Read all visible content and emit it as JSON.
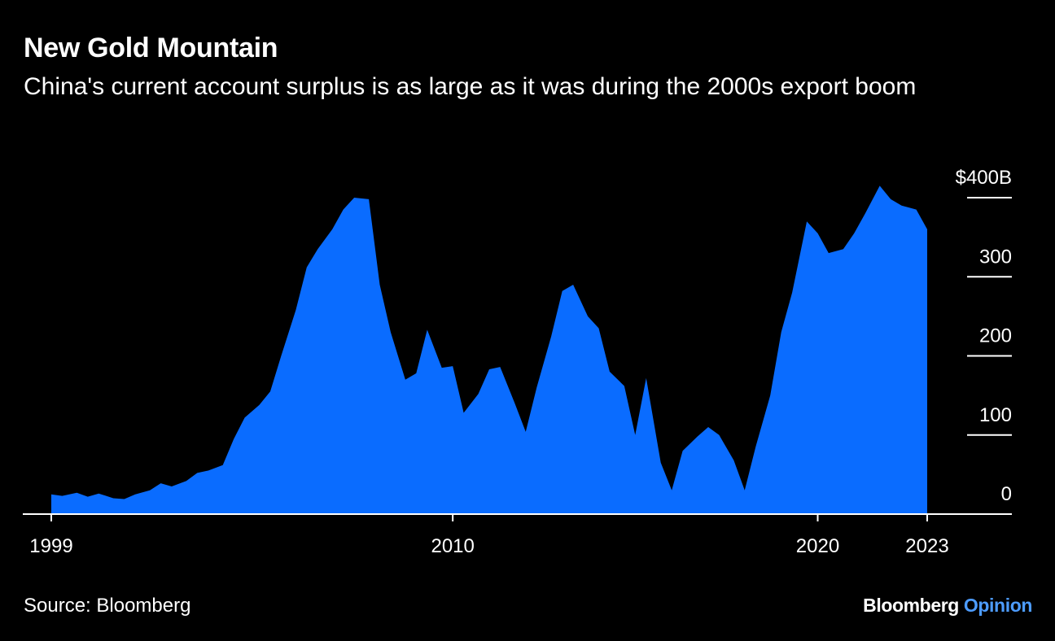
{
  "header": {
    "title": "New Gold Mountain",
    "subtitle": "China's current account surplus is as large as it was during the 2000s export boom"
  },
  "footer": {
    "source": "Source: Bloomberg",
    "brand_main": "Bloomberg",
    "brand_accent": "Opinion"
  },
  "colors": {
    "background": "#000000",
    "area_fill": "#0a6cff",
    "text": "#ffffff",
    "brand_accent": "#4d9cff"
  },
  "chart_data": {
    "type": "area",
    "title": "New Gold Mountain",
    "subtitle": "China's current account surplus is as large as it was during the 2000s export boom",
    "xlabel": "",
    "ylabel": "",
    "x_ticks": [
      "1999",
      "2010",
      "2020",
      "2023"
    ],
    "y_ticks": [
      "$400B",
      "300",
      "200",
      "100",
      "0"
    ],
    "y_tick_values": [
      400,
      300,
      200,
      100,
      0
    ],
    "ylim": [
      0,
      400
    ],
    "xlim": [
      1999.0,
      2023.0
    ],
    "grid": false,
    "legend": "none",
    "series": [
      {
        "x": [
          1999.0,
          1999.3,
          1999.7,
          2000.0,
          2000.3,
          2000.7,
          2001.0,
          2001.3,
          2001.7,
          2002.0,
          2002.3,
          2002.7,
          2003.0,
          2003.3,
          2003.7,
          2004.0,
          2004.3,
          2004.7,
          2005.0,
          2005.3,
          2005.7,
          2006.0,
          2006.3,
          2006.7,
          2007.0,
          2007.3,
          2007.7,
          2008.0,
          2008.3,
          2008.7,
          2009.0,
          2009.3,
          2009.7,
          2010.0,
          2010.3,
          2010.7,
          2011.0,
          2011.3,
          2011.7,
          2012.0,
          2012.3,
          2012.7,
          2013.0,
          2013.3,
          2013.7,
          2014.0,
          2014.3,
          2014.7,
          2015.0,
          2015.3,
          2015.7,
          2016.0,
          2016.3,
          2016.7,
          2017.0,
          2017.3,
          2017.7,
          2018.0,
          2018.3,
          2018.7,
          2019.0,
          2019.3,
          2019.7,
          2020.0,
          2020.3,
          2020.7,
          2021.0,
          2021.3,
          2021.7,
          2022.0,
          2022.3,
          2022.7,
          2023.0
        ],
        "y": [
          25,
          23,
          27,
          22,
          26,
          20,
          19,
          25,
          30,
          39,
          35,
          42,
          52,
          55,
          62,
          95,
          122,
          138,
          155,
          200,
          258,
          312,
          335,
          360,
          385,
          400,
          398,
          290,
          230,
          170,
          178,
          233,
          185,
          187,
          128,
          152,
          183,
          186,
          140,
          104,
          160,
          225,
          282,
          290,
          250,
          235,
          180,
          162,
          100,
          172,
          65,
          30,
          80,
          98,
          110,
          100,
          68,
          30,
          85,
          150,
          230,
          280,
          370,
          355,
          330,
          335,
          355,
          380,
          415,
          398,
          390,
          385,
          360
        ]
      }
    ]
  }
}
